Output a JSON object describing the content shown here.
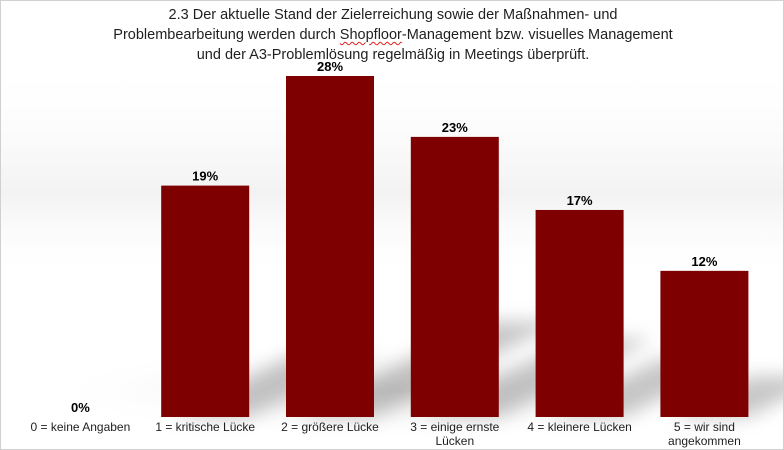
{
  "chart_data": {
    "type": "bar",
    "title_lines": [
      "2.3 Der aktuelle Stand der Zielerreichung sowie der Maßnahmen- und",
      "Problembearbeitung werden durch Shopfloor-Management bzw. visuelles Management",
      "und der A3-Problemlösung regelmäßig in Meetings überprüft."
    ],
    "title_parts": {
      "before": "Problembearbeitung werden durch ",
      "marked": "Shopfloor",
      "after": "-Management bzw. visuelles Management"
    },
    "categories": [
      [
        "0 = keine Angaben"
      ],
      [
        "1 = kritische Lücke"
      ],
      [
        "2 = größere Lücke"
      ],
      [
        "3 = einige ernste",
        "Lücken"
      ],
      [
        "4 = kleinere Lücken"
      ],
      [
        "5 = wir sind",
        "angekommen"
      ]
    ],
    "values": [
      0,
      19,
      28,
      23,
      17,
      12
    ],
    "value_labels": [
      "0%",
      "19%",
      "28%",
      "23%",
      "17%",
      "12%"
    ],
    "ylim": [
      0,
      28
    ],
    "bar_color": "#7f0000",
    "grid": false,
    "legend": "none"
  }
}
